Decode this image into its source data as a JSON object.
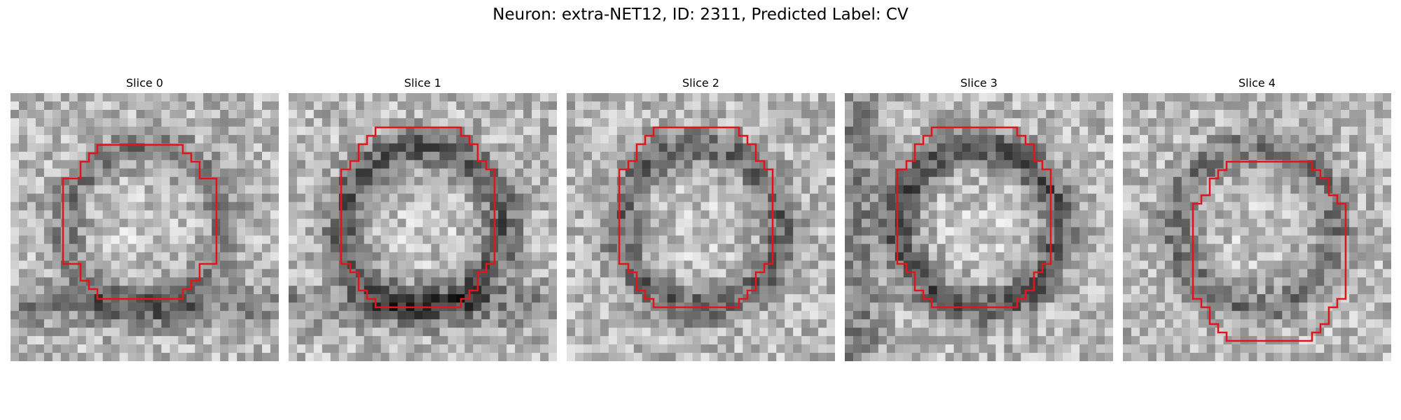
{
  "figure": {
    "title": "Neuron: extra-NET12, ID: 2311, Predicted Label: CV",
    "contour_color": "#e0161c"
  },
  "slices": [
    {
      "title": "Slice 0",
      "seed": 11,
      "ring": 0.55,
      "dark_band": "bottom"
    },
    {
      "title": "Slice 1",
      "seed": 23,
      "ring": 0.85,
      "dark_band": "bottom"
    },
    {
      "title": "Slice 2",
      "seed": 37,
      "ring": 0.75,
      "dark_band": "none"
    },
    {
      "title": "Slice 3",
      "seed": 41,
      "ring": 0.9,
      "dark_band": "left"
    },
    {
      "title": "Slice 4",
      "seed": 53,
      "ring": 0.6,
      "dark_band": "none"
    }
  ]
}
